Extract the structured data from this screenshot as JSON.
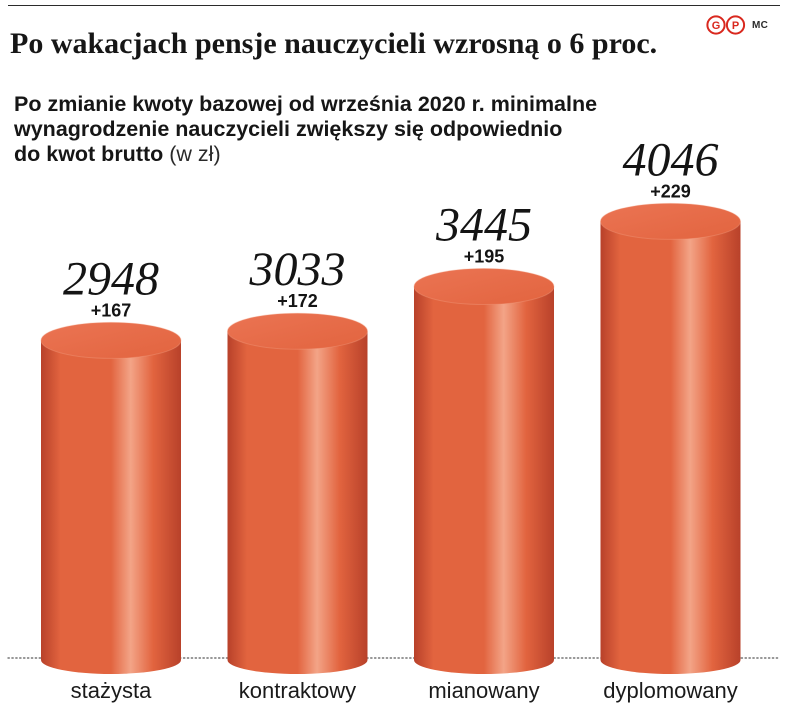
{
  "header": {
    "author": "MC",
    "logo_letters": [
      "G",
      "P"
    ]
  },
  "colors": {
    "bar": "#E2643F",
    "bar_light": "#F3A487",
    "bar_dark": "#B8412A",
    "bar_top": "#EB7453",
    "logo": "#D9281E"
  },
  "chart_data": {
    "type": "bar",
    "title": "Po wakacjach pensje nauczycieli wzrosną o 6 proc.",
    "subtitle": [
      "Po zmianie kwoty bazowej od września 2020 r. minimalne",
      "wynagrodzenie nauczycieli zwiększy się odpowiednio",
      "do kwot brutto"
    ],
    "unit": "(w zł)",
    "categories": [
      "stażysta",
      "kontraktowy",
      "mianowany",
      "dyplomowany"
    ],
    "values": [
      2948,
      3033,
      3445,
      4046
    ],
    "increase_labels": [
      "+167",
      "+172",
      "+195",
      "+229"
    ],
    "grid": false,
    "legend": false
  }
}
